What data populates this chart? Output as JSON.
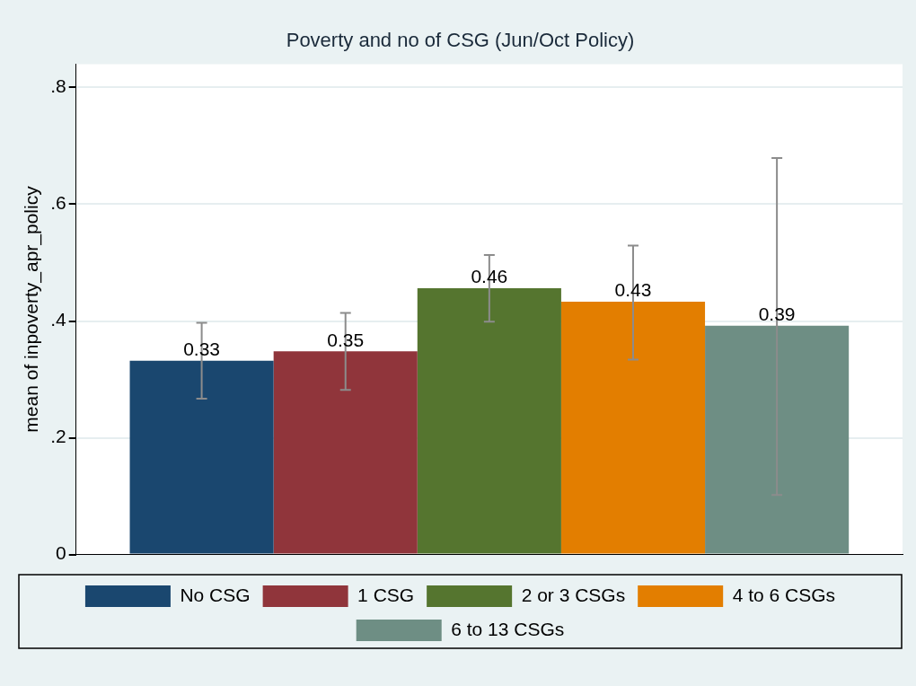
{
  "chart_data": {
    "type": "bar",
    "title": "Poverty and no of CSG (Jun/Oct Policy)",
    "ylabel": "mean of inpoverty_apr_policy",
    "categories": [
      null
    ],
    "series": [
      {
        "name": "No CSG",
        "color": "#1a476f",
        "values": [
          0.332
        ],
        "errors": [
          [
            0.267,
            0.397
          ]
        ],
        "value_labels": [
          "0.33"
        ]
      },
      {
        "name": "1 CSG",
        "color": "#90353b",
        "values": [
          0.348
        ],
        "errors": [
          [
            0.282,
            0.414
          ]
        ],
        "value_labels": [
          "0.35"
        ]
      },
      {
        "name": "2 or 3 CSGs",
        "color": "#55752f",
        "values": [
          0.456
        ],
        "errors": [
          [
            0.399,
            0.513
          ]
        ],
        "value_labels": [
          "0.46"
        ]
      },
      {
        "name": "4 to 6 CSGs",
        "color": "#e37e00",
        "values": [
          0.433
        ],
        "errors": [
          [
            0.334,
            0.529
          ]
        ],
        "value_labels": [
          "0.43"
        ]
      },
      {
        "name": "6 to 13 CSGs",
        "color": "#6e8e84",
        "values": [
          0.392
        ],
        "errors": [
          [
            0.102,
            0.679
          ]
        ],
        "value_labels": [
          "0.39"
        ]
      }
    ],
    "ylim": [
      0,
      0.84
    ],
    "yticks": [
      0,
      {
        "value": 0.2,
        "label": ".2"
      },
      {
        "value": 0.4,
        "label": ".4"
      },
      {
        "value": 0.6,
        "label": ".6"
      },
      {
        "value": 0.8,
        "label": ".8"
      }
    ],
    "grid": "y",
    "legend": "bottom"
  }
}
